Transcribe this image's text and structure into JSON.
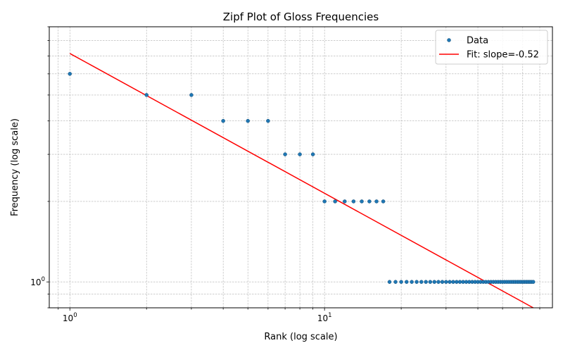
{
  "chart_data": {
    "type": "scatter",
    "title": "Zipf Plot of Gloss Frequencies",
    "xlabel": "Rank (log scale)",
    "ylabel": "Frequency (log scale)",
    "xscale": "log",
    "yscale": "log",
    "xlim": [
      0.83,
      78.5
    ],
    "ylim": [
      0.8,
      9.0
    ],
    "grid": true,
    "legend_position": "top-right",
    "x_tick_labels": [
      {
        "value": 1,
        "base": "10",
        "exp": "0"
      },
      {
        "value": 10,
        "base": "10",
        "exp": "1"
      }
    ],
    "y_tick_labels": [
      {
        "value": 1,
        "base": "10",
        "exp": "0"
      }
    ],
    "series": [
      {
        "name": "Data",
        "kind": "scatter",
        "color": "#1f77b4",
        "points": [
          {
            "x": 1,
            "y": 6
          },
          {
            "x": 2,
            "y": 5
          },
          {
            "x": 3,
            "y": 5
          },
          {
            "x": 4,
            "y": 4
          },
          {
            "x": 5,
            "y": 4
          },
          {
            "x": 6,
            "y": 4
          },
          {
            "x": 7,
            "y": 3
          },
          {
            "x": 8,
            "y": 3
          },
          {
            "x": 9,
            "y": 3
          },
          {
            "x": 10,
            "y": 2
          },
          {
            "x": 11,
            "y": 2
          },
          {
            "x": 12,
            "y": 2
          },
          {
            "x": 13,
            "y": 2
          },
          {
            "x": 14,
            "y": 2
          },
          {
            "x": 15,
            "y": 2
          },
          {
            "x": 16,
            "y": 2
          },
          {
            "x": 17,
            "y": 2
          },
          {
            "x": 18,
            "y": 1
          },
          {
            "x": 19,
            "y": 1
          },
          {
            "x": 20,
            "y": 1
          },
          {
            "x": 21,
            "y": 1
          },
          {
            "x": 22,
            "y": 1
          },
          {
            "x": 23,
            "y": 1
          },
          {
            "x": 24,
            "y": 1
          },
          {
            "x": 25,
            "y": 1
          },
          {
            "x": 26,
            "y": 1
          },
          {
            "x": 27,
            "y": 1
          },
          {
            "x": 28,
            "y": 1
          },
          {
            "x": 29,
            "y": 1
          },
          {
            "x": 30,
            "y": 1
          },
          {
            "x": 31,
            "y": 1
          },
          {
            "x": 32,
            "y": 1
          },
          {
            "x": 33,
            "y": 1
          },
          {
            "x": 34,
            "y": 1
          },
          {
            "x": 35,
            "y": 1
          },
          {
            "x": 36,
            "y": 1
          },
          {
            "x": 37,
            "y": 1
          },
          {
            "x": 38,
            "y": 1
          },
          {
            "x": 39,
            "y": 1
          },
          {
            "x": 40,
            "y": 1
          },
          {
            "x": 41,
            "y": 1
          },
          {
            "x": 42,
            "y": 1
          },
          {
            "x": 43,
            "y": 1
          },
          {
            "x": 44,
            "y": 1
          },
          {
            "x": 45,
            "y": 1
          },
          {
            "x": 46,
            "y": 1
          },
          {
            "x": 47,
            "y": 1
          },
          {
            "x": 48,
            "y": 1
          },
          {
            "x": 49,
            "y": 1
          },
          {
            "x": 50,
            "y": 1
          },
          {
            "x": 51,
            "y": 1
          },
          {
            "x": 52,
            "y": 1
          },
          {
            "x": 53,
            "y": 1
          },
          {
            "x": 54,
            "y": 1
          },
          {
            "x": 55,
            "y": 1
          },
          {
            "x": 56,
            "y": 1
          },
          {
            "x": 57,
            "y": 1
          },
          {
            "x": 58,
            "y": 1
          },
          {
            "x": 59,
            "y": 1
          },
          {
            "x": 60,
            "y": 1
          },
          {
            "x": 61,
            "y": 1
          },
          {
            "x": 62,
            "y": 1
          },
          {
            "x": 63,
            "y": 1
          },
          {
            "x": 64,
            "y": 1
          },
          {
            "x": 65,
            "y": 1
          },
          {
            "x": 66,
            "y": 1
          }
        ]
      },
      {
        "name": "Fit: slope=-0.52",
        "kind": "line",
        "color": "#ff0000",
        "points": [
          {
            "x": 1,
            "y": 7.15
          },
          {
            "x": 66,
            "y": 0.8
          }
        ]
      }
    ]
  }
}
